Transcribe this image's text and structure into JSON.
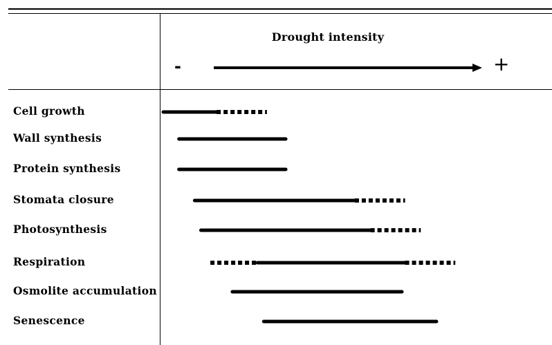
{
  "header": {
    "title": "Drought intensity",
    "minus_sign": "-",
    "plus_sign": "+"
  },
  "processes": [
    {
      "label": "Cell growth",
      "segments": [
        {
          "style": "solid",
          "start": 0.0,
          "end": 0.17
        },
        {
          "style": "dashed",
          "start": 0.17,
          "end": 0.33
        }
      ]
    },
    {
      "label": "Wall synthesis",
      "segments": [
        {
          "style": "solid",
          "start": 0.05,
          "end": 0.39
        }
      ]
    },
    {
      "label": "Protein synthesis",
      "segments": [
        {
          "style": "solid",
          "start": 0.05,
          "end": 0.39
        }
      ]
    },
    {
      "label": "Stomata closure",
      "segments": [
        {
          "style": "solid",
          "start": 0.1,
          "end": 0.61
        },
        {
          "style": "dashed",
          "start": 0.61,
          "end": 0.77
        }
      ]
    },
    {
      "label": "Photosynthesis",
      "segments": [
        {
          "style": "solid",
          "start": 0.12,
          "end": 0.66
        },
        {
          "style": "dashed",
          "start": 0.66,
          "end": 0.82
        }
      ]
    },
    {
      "label": "Respiration",
      "segments": [
        {
          "style": "dashed",
          "start": 0.15,
          "end": 0.3
        },
        {
          "style": "solid",
          "start": 0.3,
          "end": 0.77
        },
        {
          "style": "dashed",
          "start": 0.77,
          "end": 0.93
        }
      ]
    },
    {
      "label": "Osmolite accumulation",
      "segments": [
        {
          "style": "solid",
          "start": 0.22,
          "end": 0.76
        }
      ]
    },
    {
      "label": "Senescence",
      "segments": [
        {
          "style": "solid",
          "start": 0.32,
          "end": 0.87
        }
      ]
    }
  ]
}
